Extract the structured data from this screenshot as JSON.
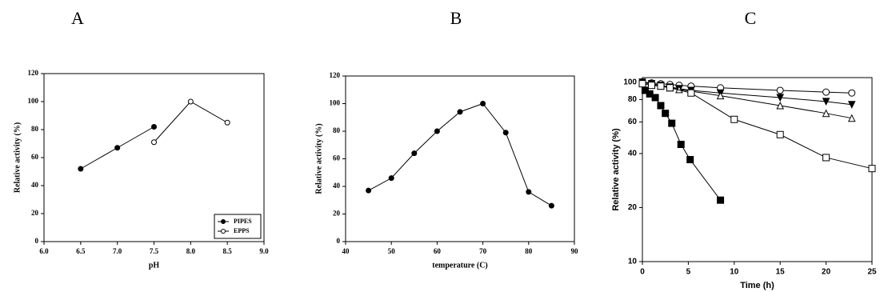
{
  "chart_data": [
    {
      "type": "line",
      "title": "A",
      "xlabel": "pH",
      "ylabel": "Relative activity (%)",
      "xlim": [
        6,
        9
      ],
      "xticks": [
        {
          "value": 6,
          "label": "6.0"
        },
        6.5,
        {
          "value": 7,
          "label": "7.0"
        },
        7.5,
        {
          "value": 8,
          "label": "8.0"
        },
        8.5,
        {
          "value": 9,
          "label": "9.0"
        }
      ],
      "ylim": [
        0,
        120
      ],
      "yticks": [
        0,
        20,
        40,
        60,
        80,
        100,
        120
      ],
      "legend": "lower right",
      "series": [
        {
          "name": "PIPES",
          "color": "#000000",
          "marker": "circle",
          "filled": true,
          "x": [
            6.5,
            7.0,
            7.5
          ],
          "values": [
            52,
            67,
            82
          ]
        },
        {
          "name": "EPPS",
          "color": "#000000",
          "marker": "circle",
          "filled": false,
          "x": [
            7.5,
            8.0,
            8.5
          ],
          "values": [
            71,
            100,
            85
          ]
        }
      ]
    },
    {
      "type": "line",
      "title": "B",
      "xlabel": "temperature (C)",
      "ylabel": "Relative activity (%)",
      "xlim": [
        40,
        90
      ],
      "xticks": [
        40,
        50,
        60,
        70,
        80,
        90
      ],
      "ylim": [
        0,
        120
      ],
      "yticks": [
        0,
        20,
        40,
        60,
        80,
        100,
        120
      ],
      "series": [
        {
          "color": "#000000",
          "marker": "circle",
          "filled": true,
          "x": [
            45,
            50,
            55,
            60,
            65,
            70,
            75,
            80,
            85
          ],
          "values": [
            37,
            46,
            64,
            80,
            94,
            100,
            79,
            36,
            26
          ]
        }
      ]
    },
    {
      "type": "line",
      "title": "C",
      "xlabel": "Time (h)",
      "ylabel": "Relative activity (%)",
      "log_y": true,
      "xlim": [
        0,
        25
      ],
      "xticks": [
        0,
        5,
        10,
        15,
        20,
        25
      ],
      "ylim": [
        10,
        106
      ],
      "yticks": [
        10,
        20,
        40,
        60,
        80,
        100
      ],
      "series": [
        {
          "color": "#000000",
          "marker": "circle",
          "filled": false,
          "x": [
            0,
            1,
            2,
            3,
            4,
            5.3,
            8.5,
            15,
            20,
            22.8
          ],
          "values": [
            100,
            99,
            98,
            97,
            96,
            95,
            93,
            90,
            88,
            87
          ]
        },
        {
          "color": "#000000",
          "marker": "triangle-down",
          "filled": true,
          "x": [
            0,
            1,
            2,
            3,
            4,
            5.3,
            8.5,
            15,
            20,
            22.8
          ],
          "values": [
            100,
            98,
            96,
            94,
            92,
            90,
            87,
            82,
            78,
            75
          ]
        },
        {
          "color": "#000000",
          "marker": "triangle-up",
          "filled": false,
          "x": [
            0,
            1,
            2,
            3,
            4,
            5.3,
            8.5,
            15,
            20,
            22.8
          ],
          "values": [
            100,
            97,
            95,
            93,
            91,
            89,
            84,
            74,
            67,
            63
          ]
        },
        {
          "color": "#000000",
          "marker": "square",
          "filled": false,
          "x": [
            0,
            1,
            2,
            3,
            5.3,
            10,
            15,
            20,
            25
          ],
          "values": [
            98,
            96,
            95,
            93,
            87,
            62,
            51,
            38,
            33
          ]
        },
        {
          "color": "#000000",
          "marker": "square",
          "filled": true,
          "x": [
            0.3,
            0.8,
            1.4,
            2,
            2.5,
            3.2,
            4.2,
            5.2,
            8.5
          ],
          "values": [
            90,
            86,
            82,
            74,
            67,
            59,
            45,
            37,
            22
          ]
        }
      ]
    }
  ]
}
